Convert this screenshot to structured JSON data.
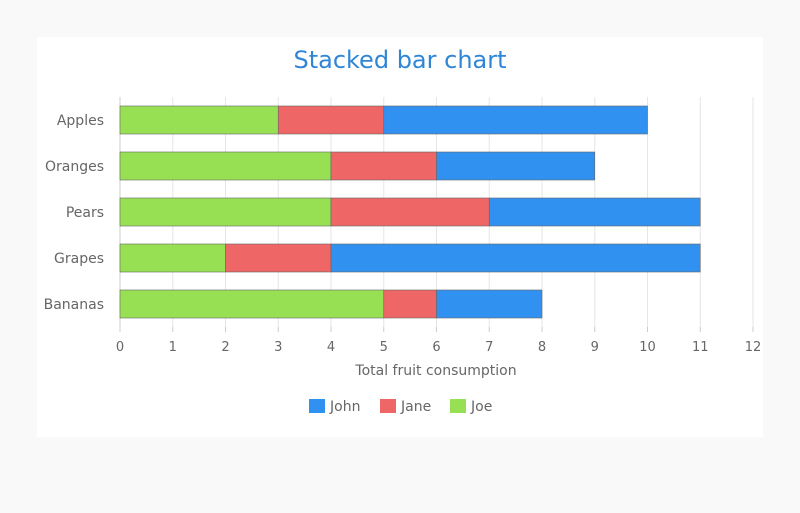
{
  "chart_data": {
    "type": "bar",
    "orientation": "horizontal",
    "stacked": true,
    "title": "Stacked bar chart",
    "xlabel": "Total fruit consumption",
    "ylabel": "",
    "categories": [
      "Apples",
      "Oranges",
      "Pears",
      "Grapes",
      "Bananas"
    ],
    "series": [
      {
        "name": "Joe",
        "color": "#97e053",
        "values": [
          3,
          4,
          4,
          2,
          5
        ]
      },
      {
        "name": "Jane",
        "color": "#ee6666",
        "values": [
          2,
          2,
          3,
          2,
          1
        ]
      },
      {
        "name": "John",
        "color": "#3191f0",
        "values": [
          5,
          3,
          4,
          7,
          2
        ]
      }
    ],
    "legend_order": [
      "John",
      "Jane",
      "Joe"
    ],
    "xlim": [
      0,
      12
    ],
    "xticks": [
      "0",
      "1",
      "2",
      "3",
      "4",
      "5",
      "6",
      "7",
      "8",
      "9",
      "10",
      "11",
      "12"
    ],
    "grid": true,
    "legend_position": "bottom"
  }
}
